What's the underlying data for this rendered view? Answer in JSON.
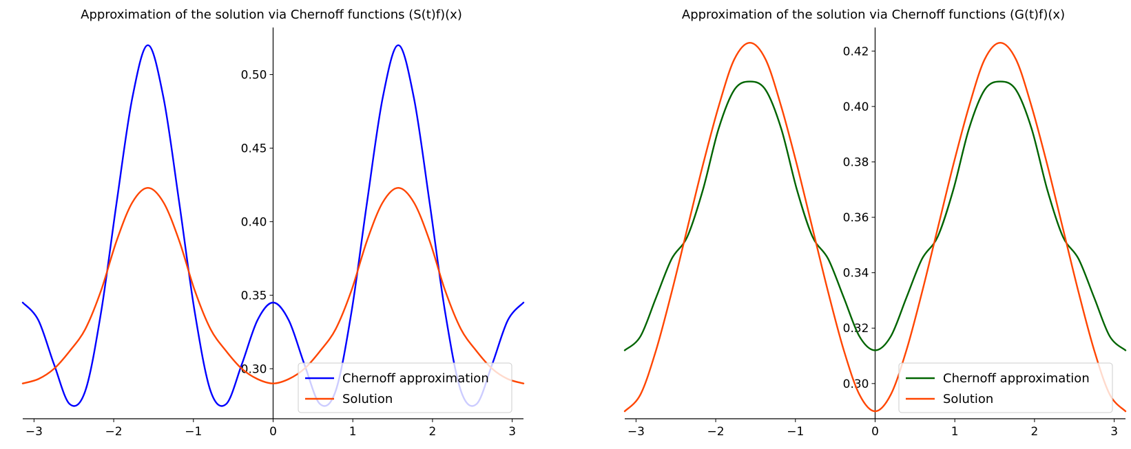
{
  "chart_data": [
    {
      "type": "line",
      "title": "Approximation of the solution via Chernoff functions (S(t)f)(x)",
      "xlabel": "",
      "ylabel": "",
      "xlim": [
        -3.14159,
        3.14159
      ],
      "ylim": [
        0.266,
        0.532
      ],
      "xticks": [
        -3,
        -2,
        -1,
        0,
        1,
        2,
        3
      ],
      "xtick_labels": [
        "−3",
        "−2",
        "−1",
        "0",
        "1",
        "2",
        "3"
      ],
      "yticks": [
        0.3,
        0.35,
        0.4,
        0.45,
        0.5
      ],
      "ytick_labels": [
        "0.30",
        "0.35",
        "0.40",
        "0.45",
        "0.50"
      ],
      "grid": false,
      "spines": "centered",
      "legend_position": "lower right",
      "series": [
        {
          "name": "Chernoff approximation",
          "color": "#0000ff",
          "x": [
            -3.1416,
            -2.9452,
            -2.7489,
            -2.5525,
            -2.3562,
            -2.1598,
            -1.9635,
            -1.7671,
            -1.5708,
            -1.3744,
            -1.1781,
            -0.9817,
            -0.7854,
            -0.589,
            -0.3927,
            -0.1963,
            0.0,
            0.1963,
            0.3927,
            0.589,
            0.7854,
            0.9817,
            1.1781,
            1.3744,
            1.5708,
            1.7671,
            1.9635,
            2.1598,
            2.3562,
            2.5525,
            2.7489,
            2.9452,
            3.1416
          ],
          "y": [
            0.345,
            0.333,
            0.303,
            0.276,
            0.285,
            0.338,
            0.413,
            0.484,
            0.52,
            0.484,
            0.413,
            0.338,
            0.285,
            0.276,
            0.303,
            0.333,
            0.345,
            0.333,
            0.303,
            0.276,
            0.285,
            0.338,
            0.413,
            0.484,
            0.52,
            0.484,
            0.413,
            0.338,
            0.285,
            0.276,
            0.303,
            0.333,
            0.345
          ]
        },
        {
          "name": "Solution",
          "color": "#ff4500",
          "x": [
            -3.1416,
            -2.9452,
            -2.7489,
            -2.5525,
            -2.3562,
            -2.1598,
            -1.9635,
            -1.7671,
            -1.5708,
            -1.3744,
            -1.1781,
            -0.9817,
            -0.7854,
            -0.589,
            -0.3927,
            -0.1963,
            0.0,
            0.1963,
            0.3927,
            0.589,
            0.7854,
            0.9817,
            1.1781,
            1.3744,
            1.5708,
            1.7671,
            1.9635,
            2.1598,
            2.3562,
            2.5525,
            2.7489,
            2.9452,
            3.1416
          ],
          "y": [
            0.29,
            0.293,
            0.3,
            0.312,
            0.327,
            0.353,
            0.387,
            0.413,
            0.423,
            0.413,
            0.387,
            0.353,
            0.327,
            0.312,
            0.3,
            0.293,
            0.29,
            0.293,
            0.3,
            0.312,
            0.327,
            0.353,
            0.387,
            0.413,
            0.423,
            0.413,
            0.387,
            0.353,
            0.327,
            0.312,
            0.3,
            0.293,
            0.29
          ]
        }
      ]
    },
    {
      "type": "line",
      "title": "Approximation of the solution via Chernoff functions (G(t)f)(x)",
      "xlabel": "",
      "ylabel": "",
      "xlim": [
        -3.14159,
        3.14159
      ],
      "ylim": [
        0.2873,
        0.4285
      ],
      "xticks": [
        -3,
        -2,
        -1,
        0,
        1,
        2,
        3
      ],
      "xtick_labels": [
        "−3",
        "−2",
        "−1",
        "0",
        "1",
        "2",
        "3"
      ],
      "yticks": [
        0.3,
        0.32,
        0.34,
        0.36,
        0.38,
        0.4,
        0.42
      ],
      "ytick_labels": [
        "0.30",
        "0.32",
        "0.34",
        "0.36",
        "0.38",
        "0.40",
        "0.42"
      ],
      "grid": false,
      "spines": "centered",
      "legend_position": "lower right",
      "series": [
        {
          "name": "Chernoff approximation",
          "color": "#006400",
          "x": [
            -3.1416,
            -2.9452,
            -2.7489,
            -2.5525,
            -2.3562,
            -2.1598,
            -1.9635,
            -1.7671,
            -1.5708,
            -1.3744,
            -1.1781,
            -0.9817,
            -0.7854,
            -0.589,
            -0.3927,
            -0.1963,
            0.0,
            0.1963,
            0.3927,
            0.589,
            0.7854,
            0.9817,
            1.1781,
            1.3744,
            1.5708,
            1.7671,
            1.9635,
            2.1598,
            2.3562,
            2.5525,
            2.7489,
            2.9452,
            3.1416
          ],
          "y": [
            0.312,
            0.317,
            0.331,
            0.345,
            0.353,
            0.37,
            0.392,
            0.406,
            0.409,
            0.406,
            0.392,
            0.37,
            0.353,
            0.345,
            0.331,
            0.317,
            0.312,
            0.317,
            0.331,
            0.345,
            0.353,
            0.37,
            0.392,
            0.406,
            0.409,
            0.406,
            0.392,
            0.37,
            0.353,
            0.345,
            0.331,
            0.317,
            0.312
          ]
        },
        {
          "name": "Solution",
          "color": "#ff4500",
          "x": [
            -3.1416,
            -2.9452,
            -2.7489,
            -2.5525,
            -2.3562,
            -2.1598,
            -1.9635,
            -1.7671,
            -1.5708,
            -1.3744,
            -1.1781,
            -0.9817,
            -0.7854,
            -0.589,
            -0.3927,
            -0.1963,
            0.0,
            0.1963,
            0.3927,
            0.589,
            0.7854,
            0.9817,
            1.1781,
            1.3744,
            1.5708,
            1.7671,
            1.9635,
            2.1598,
            2.3562,
            2.5525,
            2.7489,
            2.9452,
            3.1416
          ],
          "y": [
            0.29,
            0.296,
            0.312,
            0.333,
            0.356,
            0.379,
            0.4,
            0.417,
            0.423,
            0.417,
            0.4,
            0.379,
            0.356,
            0.333,
            0.312,
            0.296,
            0.29,
            0.296,
            0.312,
            0.333,
            0.356,
            0.379,
            0.4,
            0.417,
            0.423,
            0.417,
            0.4,
            0.379,
            0.356,
            0.333,
            0.312,
            0.296,
            0.29
          ]
        }
      ]
    }
  ]
}
